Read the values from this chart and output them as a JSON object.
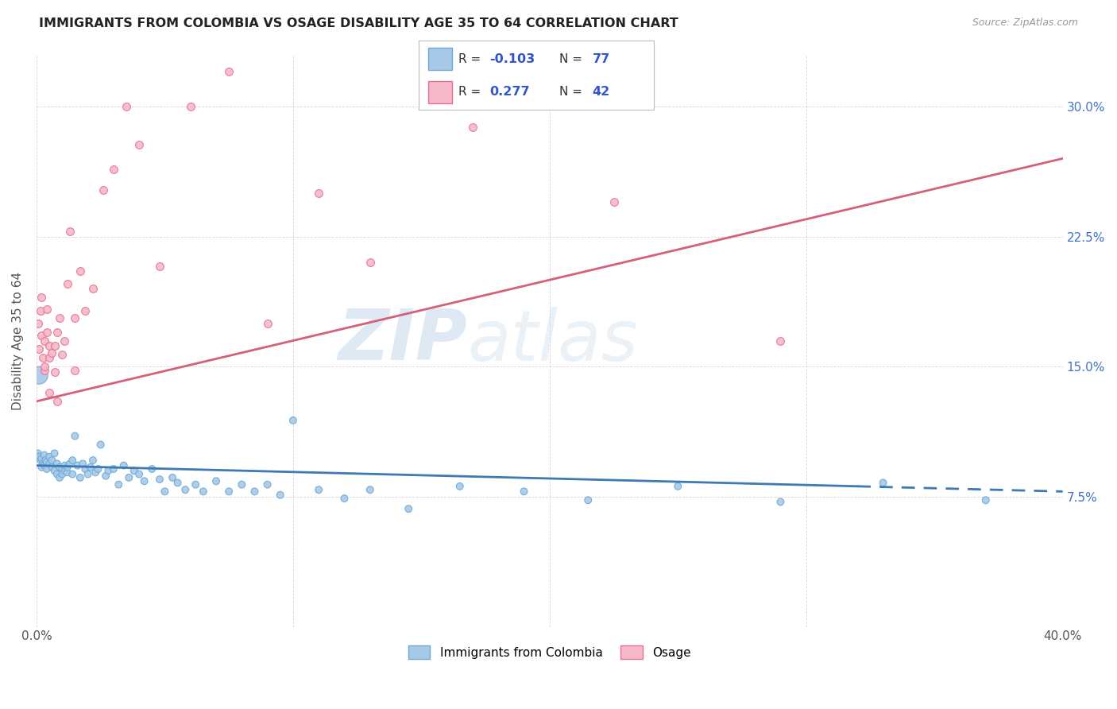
{
  "title": "IMMIGRANTS FROM COLOMBIA VS OSAGE DISABILITY AGE 35 TO 64 CORRELATION CHART",
  "source": "Source: ZipAtlas.com",
  "ylabel": "Disability Age 35 to 64",
  "xlim": [
    0.0,
    0.4
  ],
  "ylim": [
    0.0,
    0.33
  ],
  "xtick_vals": [
    0.0,
    0.1,
    0.2,
    0.3,
    0.4
  ],
  "xtick_labels": [
    "0.0%",
    "",
    "",
    "",
    "40.0%"
  ],
  "ytick_vals": [
    0.075,
    0.15,
    0.225,
    0.3
  ],
  "ytick_labels": [
    "7.5%",
    "15.0%",
    "22.5%",
    "30.0%"
  ],
  "blue_R": "-0.103",
  "blue_N": "77",
  "pink_R": "0.277",
  "pink_N": "42",
  "blue_dot_color": "#a8c8e8",
  "blue_edge_color": "#6aaad4",
  "pink_dot_color": "#f5b8c8",
  "pink_edge_color": "#e87090",
  "blue_line_color": "#3d7ab5",
  "pink_line_color": "#d4607a",
  "right_axis_color": "#4472c4",
  "legend_text_color": "#3355cc",
  "watermark_color": "#c5d8ea",
  "blue_line_solid_end": 0.32,
  "blue_line_x0": 0.0,
  "blue_line_y0": 0.093,
  "blue_line_x1": 0.4,
  "blue_line_y1": 0.078,
  "pink_line_x0": 0.0,
  "pink_line_y0": 0.13,
  "pink_line_x1": 0.4,
  "pink_line_y1": 0.27,
  "blue_scatter_x": [
    0.0005,
    0.001,
    0.0015,
    0.002,
    0.002,
    0.0025,
    0.003,
    0.003,
    0.0035,
    0.004,
    0.004,
    0.005,
    0.005,
    0.006,
    0.006,
    0.007,
    0.007,
    0.008,
    0.008,
    0.009,
    0.009,
    0.01,
    0.01,
    0.011,
    0.011,
    0.012,
    0.012,
    0.013,
    0.014,
    0.014,
    0.015,
    0.016,
    0.017,
    0.018,
    0.019,
    0.02,
    0.021,
    0.022,
    0.023,
    0.024,
    0.025,
    0.027,
    0.028,
    0.03,
    0.032,
    0.034,
    0.036,
    0.038,
    0.04,
    0.042,
    0.045,
    0.048,
    0.05,
    0.053,
    0.055,
    0.058,
    0.062,
    0.065,
    0.07,
    0.075,
    0.08,
    0.085,
    0.09,
    0.095,
    0.1,
    0.11,
    0.12,
    0.13,
    0.145,
    0.165,
    0.19,
    0.215,
    0.25,
    0.29,
    0.33,
    0.37,
    0.001
  ],
  "blue_scatter_y": [
    0.1,
    0.098,
    0.096,
    0.092,
    0.097,
    0.094,
    0.093,
    0.099,
    0.096,
    0.095,
    0.091,
    0.094,
    0.098,
    0.092,
    0.096,
    0.09,
    0.1,
    0.088,
    0.094,
    0.086,
    0.092,
    0.091,
    0.088,
    0.093,
    0.09,
    0.089,
    0.092,
    0.094,
    0.088,
    0.096,
    0.11,
    0.093,
    0.086,
    0.094,
    0.091,
    0.088,
    0.092,
    0.096,
    0.089,
    0.091,
    0.105,
    0.087,
    0.09,
    0.091,
    0.082,
    0.093,
    0.086,
    0.09,
    0.088,
    0.084,
    0.091,
    0.085,
    0.078,
    0.086,
    0.083,
    0.079,
    0.082,
    0.078,
    0.084,
    0.078,
    0.082,
    0.078,
    0.082,
    0.076,
    0.119,
    0.079,
    0.074,
    0.079,
    0.068,
    0.081,
    0.078,
    0.073,
    0.081,
    0.072,
    0.083,
    0.073,
    0.145
  ],
  "blue_scatter_sizes": [
    40,
    40,
    40,
    40,
    40,
    40,
    40,
    40,
    40,
    40,
    40,
    40,
    40,
    40,
    40,
    40,
    40,
    40,
    40,
    40,
    40,
    40,
    40,
    40,
    40,
    40,
    40,
    40,
    40,
    40,
    40,
    40,
    40,
    40,
    40,
    40,
    40,
    40,
    40,
    40,
    40,
    40,
    40,
    40,
    40,
    40,
    40,
    40,
    40,
    40,
    40,
    40,
    40,
    40,
    40,
    40,
    40,
    40,
    40,
    40,
    40,
    40,
    40,
    40,
    40,
    40,
    40,
    40,
    40,
    40,
    40,
    40,
    40,
    40,
    40,
    40,
    250
  ],
  "pink_scatter_x": [
    0.0005,
    0.001,
    0.0015,
    0.002,
    0.0025,
    0.003,
    0.003,
    0.004,
    0.004,
    0.005,
    0.005,
    0.006,
    0.007,
    0.007,
    0.008,
    0.009,
    0.01,
    0.011,
    0.012,
    0.013,
    0.015,
    0.017,
    0.019,
    0.022,
    0.026,
    0.03,
    0.035,
    0.04,
    0.048,
    0.06,
    0.075,
    0.09,
    0.11,
    0.13,
    0.17,
    0.225,
    0.29,
    0.005,
    0.003,
    0.002,
    0.008,
    0.015
  ],
  "pink_scatter_y": [
    0.175,
    0.16,
    0.182,
    0.168,
    0.155,
    0.148,
    0.165,
    0.183,
    0.17,
    0.155,
    0.162,
    0.158,
    0.147,
    0.162,
    0.17,
    0.178,
    0.157,
    0.165,
    0.198,
    0.228,
    0.178,
    0.205,
    0.182,
    0.195,
    0.252,
    0.264,
    0.3,
    0.278,
    0.208,
    0.3,
    0.32,
    0.175,
    0.25,
    0.21,
    0.288,
    0.245,
    0.165,
    0.135,
    0.15,
    0.19,
    0.13,
    0.148
  ]
}
